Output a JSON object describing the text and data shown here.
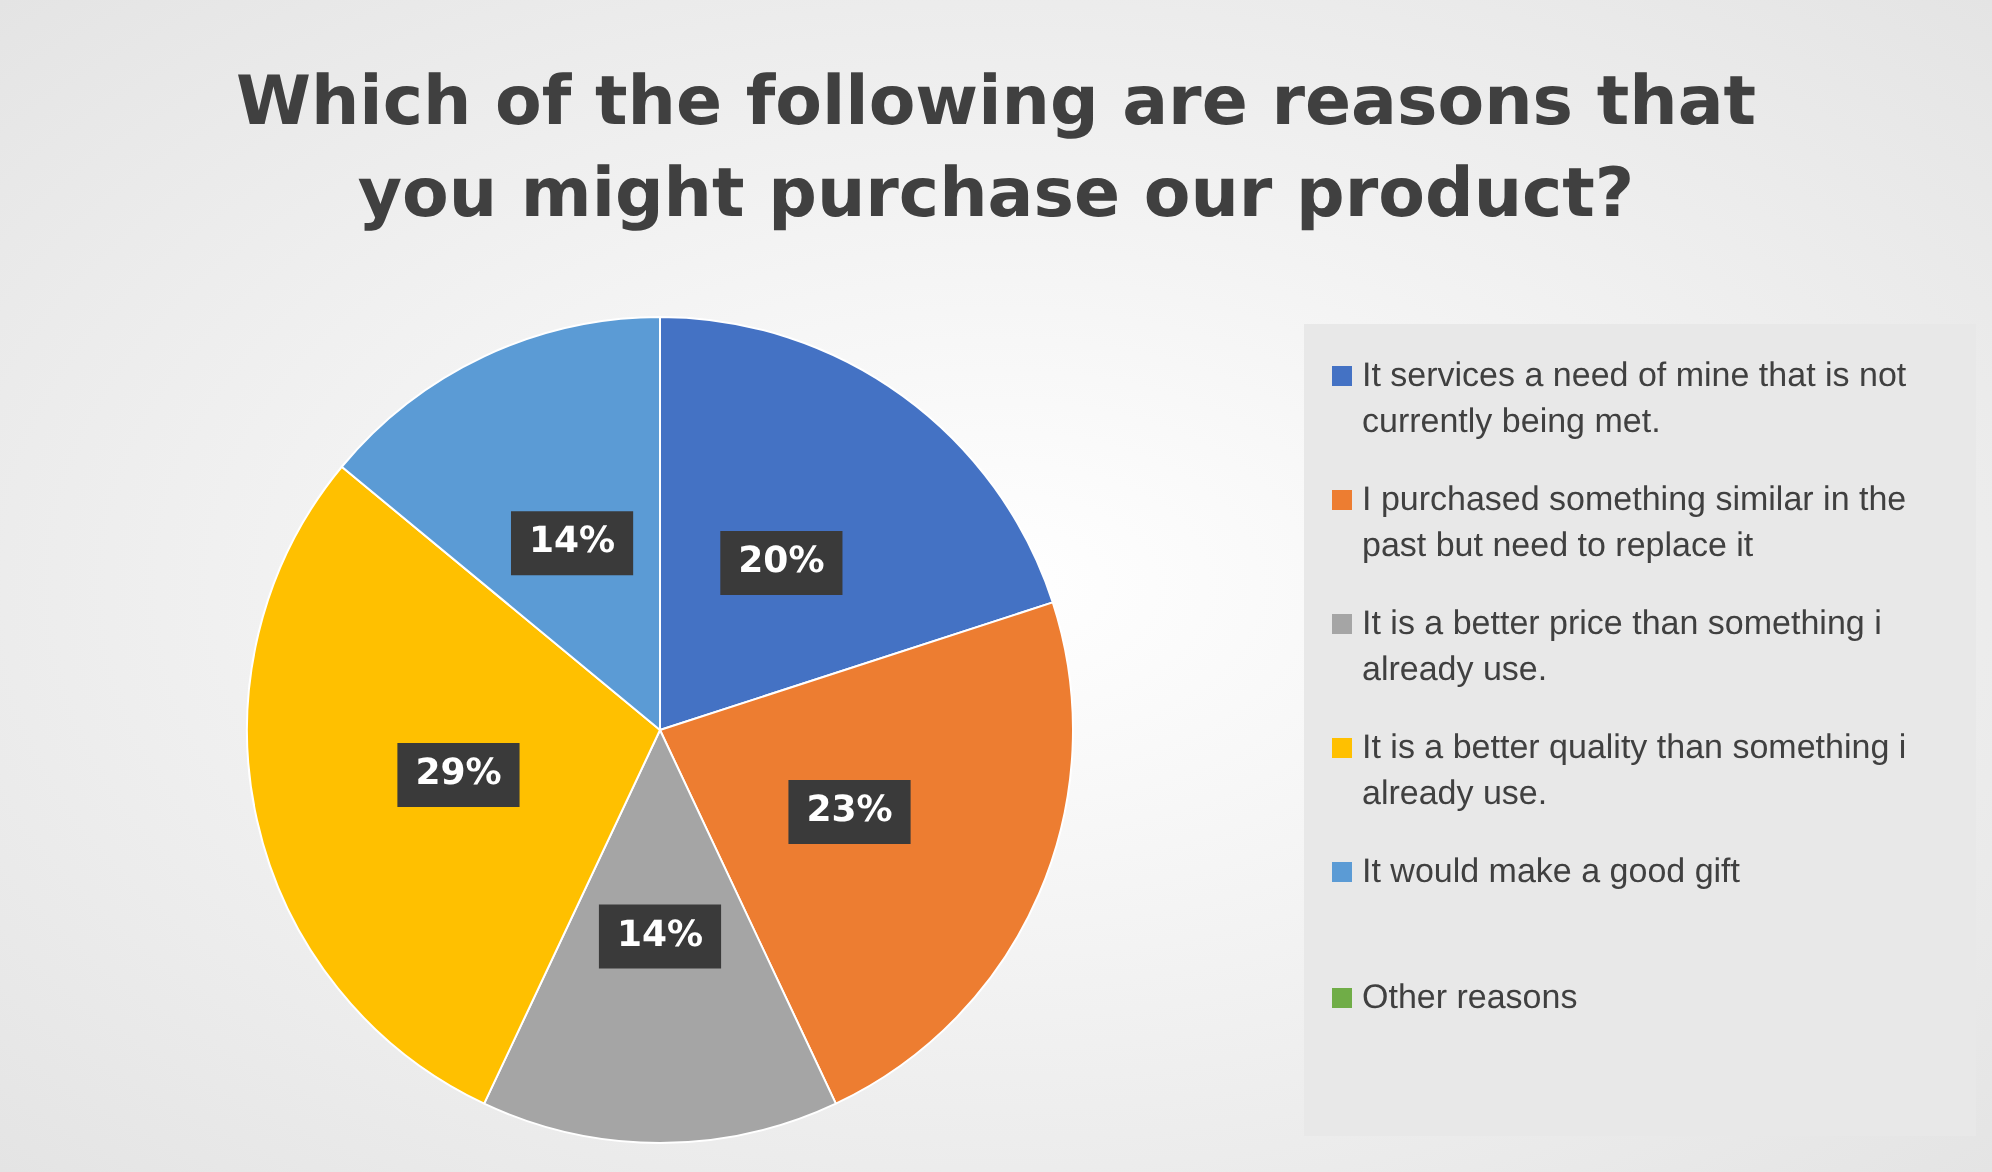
{
  "chart_data": {
    "type": "pie",
    "title": "Which of the following are reasons that you might purchase our product?",
    "categories": [
      "It services a need of mine that is not currently being met.",
      "I purchased something similar in the past but need to replace it",
      "It is a better price than something i already use.",
      "It is a better quality than something i already use.",
      "It would make a good gift",
      "Other reasons"
    ],
    "values": [
      20,
      23,
      14,
      29,
      14,
      0
    ],
    "colors": [
      "#4472c4",
      "#ed7d31",
      "#a5a5a5",
      "#ffc000",
      "#5b9bd5",
      "#70ad47"
    ],
    "value_labels": [
      "20%",
      "23%",
      "14%",
      "29%",
      "14%",
      null
    ],
    "legend": "right"
  }
}
